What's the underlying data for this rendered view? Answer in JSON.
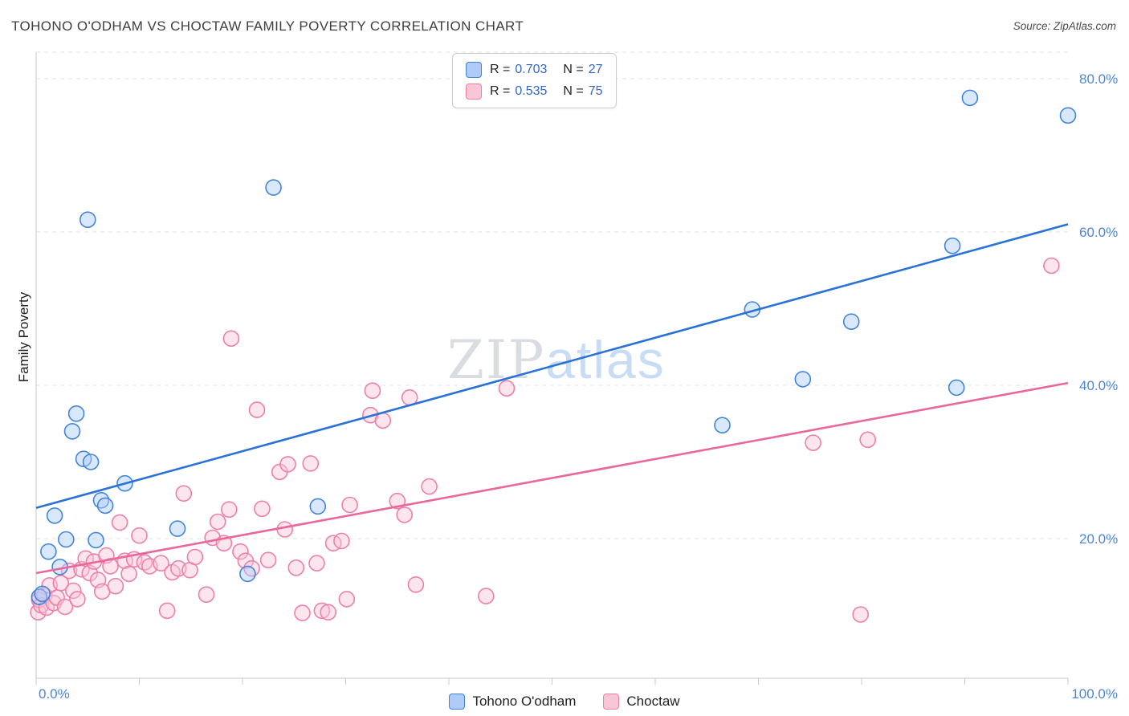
{
  "header": {
    "title": "TOHONO O'ODHAM VS CHOCTAW FAMILY POVERTY CORRELATION CHART",
    "source": "Source: ZipAtlas.com"
  },
  "watermark": {
    "zip": "ZIP",
    "atlas": "atlas"
  },
  "axes": {
    "y_title": "Family Poverty"
  },
  "legend_box": {
    "rows": [
      {
        "r_label": "R =",
        "r_value": "0.703",
        "n_label": "N =",
        "n_value": "27"
      },
      {
        "r_label": "R =",
        "r_value": "0.535",
        "n_label": "N =",
        "n_value": "75"
      }
    ]
  },
  "bottom_legend": {
    "items": [
      {
        "label": "Tohono O'odham"
      },
      {
        "label": "Choctaw"
      }
    ]
  },
  "colors": {
    "tick_label": "#4a86d8",
    "legend_value": "#3566c4",
    "blue_fill": "#AECBFA",
    "blue_stroke": "#4285D8",
    "blue_line": "#2A72D8",
    "pink_fill": "#F9C6D8",
    "pink_stroke": "#EE7FA9",
    "pink_line": "#E9679C"
  },
  "chart_data": {
    "type": "scatter",
    "title": "TOHONO O'ODHAM VS CHOCTAW FAMILY POVERTY CORRELATION CHART",
    "xlabel": "",
    "ylabel": "Family Poverty",
    "xlim": [
      0,
      100
    ],
    "ylim": [
      0,
      84
    ],
    "grid": "horizontal-dashed",
    "legend_position": "top-center",
    "grid_values": [
      20,
      40,
      60,
      80
    ],
    "x_tick_labels": [
      {
        "value": 0,
        "label": "0.0%"
      },
      {
        "value": 100,
        "label": "100.0%"
      }
    ],
    "y_tick_labels": [
      {
        "value": 20,
        "label": "20.0%"
      },
      {
        "value": 40,
        "label": "40.0%"
      },
      {
        "value": 60,
        "label": "60.0%"
      },
      {
        "value": 80,
        "label": "80.0%"
      }
    ],
    "series": [
      {
        "name": "Tohono O'odham",
        "R": 0.703,
        "N": 27,
        "fill": "#AECBFA",
        "stroke": "#4285D8",
        "points": [
          [
            0.3,
            12.4
          ],
          [
            0.6,
            12.8
          ],
          [
            1.2,
            18.3
          ],
          [
            1.8,
            23.0
          ],
          [
            2.3,
            16.3
          ],
          [
            2.9,
            19.9
          ],
          [
            3.5,
            34.0
          ],
          [
            3.9,
            36.3
          ],
          [
            4.6,
            30.4
          ],
          [
            5.0,
            61.6
          ],
          [
            5.3,
            30.0
          ],
          [
            5.8,
            19.8
          ],
          [
            6.3,
            25.0
          ],
          [
            6.7,
            24.3
          ],
          [
            8.6,
            27.2
          ],
          [
            13.7,
            21.3
          ],
          [
            20.5,
            15.4
          ],
          [
            23.0,
            65.8
          ],
          [
            27.3,
            24.2
          ],
          [
            66.5,
            34.8
          ],
          [
            69.4,
            49.9
          ],
          [
            74.3,
            40.8
          ],
          [
            79.0,
            48.3
          ],
          [
            88.8,
            58.2
          ],
          [
            89.2,
            39.7
          ],
          [
            90.5,
            77.5
          ],
          [
            100.0,
            75.2
          ]
        ]
      },
      {
        "name": "Choctaw",
        "R": 0.535,
        "N": 75,
        "fill": "#F9C6D8",
        "stroke": "#EE7FA9",
        "points": [
          [
            0.2,
            10.4
          ],
          [
            0.3,
            12.0
          ],
          [
            0.5,
            11.3
          ],
          [
            0.8,
            12.6
          ],
          [
            1.0,
            11.0
          ],
          [
            1.3,
            13.9
          ],
          [
            1.7,
            11.6
          ],
          [
            2.0,
            12.3
          ],
          [
            2.4,
            14.2
          ],
          [
            2.8,
            11.1
          ],
          [
            3.2,
            15.8
          ],
          [
            3.6,
            13.2
          ],
          [
            4.0,
            12.1
          ],
          [
            4.4,
            16.0
          ],
          [
            4.8,
            17.4
          ],
          [
            5.2,
            15.5
          ],
          [
            5.6,
            17.0
          ],
          [
            6.0,
            14.6
          ],
          [
            6.4,
            13.1
          ],
          [
            6.8,
            17.8
          ],
          [
            7.2,
            16.4
          ],
          [
            7.7,
            13.8
          ],
          [
            8.1,
            22.1
          ],
          [
            8.6,
            17.1
          ],
          [
            9.0,
            15.4
          ],
          [
            9.5,
            17.3
          ],
          [
            10.0,
            20.4
          ],
          [
            10.5,
            16.9
          ],
          [
            11.0,
            16.4
          ],
          [
            12.1,
            16.8
          ],
          [
            12.7,
            10.6
          ],
          [
            13.2,
            15.6
          ],
          [
            13.8,
            16.1
          ],
          [
            14.3,
            25.9
          ],
          [
            14.9,
            15.9
          ],
          [
            15.4,
            17.6
          ],
          [
            16.5,
            12.7
          ],
          [
            17.1,
            20.1
          ],
          [
            17.6,
            22.2
          ],
          [
            18.2,
            19.4
          ],
          [
            18.7,
            23.8
          ],
          [
            18.9,
            46.1
          ],
          [
            19.8,
            18.3
          ],
          [
            20.3,
            17.1
          ],
          [
            20.9,
            16.1
          ],
          [
            21.4,
            36.8
          ],
          [
            21.9,
            23.9
          ],
          [
            22.5,
            17.2
          ],
          [
            23.6,
            28.7
          ],
          [
            24.1,
            21.2
          ],
          [
            24.4,
            29.7
          ],
          [
            25.2,
            16.2
          ],
          [
            25.8,
            10.3
          ],
          [
            26.6,
            29.8
          ],
          [
            27.2,
            16.8
          ],
          [
            27.7,
            10.6
          ],
          [
            28.3,
            10.4
          ],
          [
            28.8,
            19.4
          ],
          [
            29.6,
            19.7
          ],
          [
            30.1,
            12.1
          ],
          [
            30.4,
            24.4
          ],
          [
            32.4,
            36.1
          ],
          [
            32.6,
            39.3
          ],
          [
            33.6,
            35.4
          ],
          [
            35.0,
            24.9
          ],
          [
            35.7,
            23.1
          ],
          [
            36.2,
            38.4
          ],
          [
            36.8,
            14.0
          ],
          [
            38.1,
            26.8
          ],
          [
            43.6,
            12.5
          ],
          [
            45.6,
            39.6
          ],
          [
            75.3,
            32.5
          ],
          [
            79.9,
            10.1
          ],
          [
            80.6,
            32.9
          ],
          [
            98.4,
            55.6
          ]
        ]
      }
    ],
    "trendlines": [
      {
        "name": "Tohono O'odham",
        "color": "#2A72D8",
        "x": [
          0,
          100
        ],
        "y": [
          24.0,
          61.0
        ]
      },
      {
        "name": "Choctaw",
        "color": "#E9679C",
        "x": [
          0,
          100
        ],
        "y": [
          15.5,
          40.3
        ]
      }
    ]
  }
}
